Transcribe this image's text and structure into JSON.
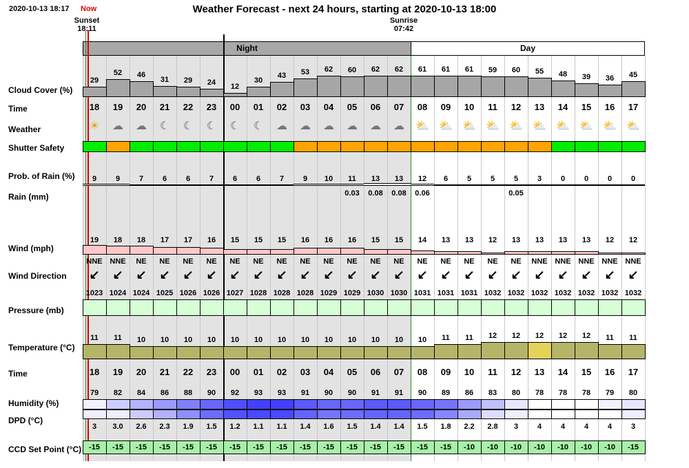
{
  "header": {
    "timestamp": "2020-10-13 18:17",
    "now_label": "Now",
    "title": "Weather Forecast - next 24 hours, starting at 2020-10-13 18:00",
    "sunset": {
      "label": "Sunset",
      "time": "18:11"
    },
    "sunrise": {
      "label": "Sunrise",
      "time": "07:42"
    }
  },
  "bands": {
    "night": "Night",
    "day": "Day"
  },
  "row_labels": {
    "cloud": "Cloud Cover (%)",
    "time": "Time",
    "weather": "Weather",
    "shutter": "Shutter Safety",
    "prob_rain": "Prob. of Rain (%)",
    "rain": "Rain (mm)",
    "wind": "Wind (mph)",
    "wind_dir": "Wind Direction",
    "pressure": "Pressure (mb)",
    "temperature": "Temperature (°C)",
    "time2": "Time",
    "humidity": "Humidity (%)",
    "dpd": "DPD (°C)",
    "ccd": "CCD Set Point (°C)"
  },
  "hours": [
    "18",
    "19",
    "20",
    "21",
    "22",
    "23",
    "00",
    "01",
    "02",
    "03",
    "04",
    "05",
    "06",
    "07",
    "08",
    "09",
    "10",
    "11",
    "12",
    "13",
    "14",
    "15",
    "16",
    "17"
  ],
  "night_hours": 14,
  "cloud_cover": [
    29,
    52,
    46,
    31,
    29,
    24,
    12,
    30,
    43,
    53,
    62,
    60,
    62,
    62,
    61,
    61,
    61,
    59,
    60,
    55,
    48,
    39,
    36,
    45
  ],
  "weather_icons": [
    "sun-icon",
    "partly-cloudy-moon-icon",
    "partly-cloudy-moon-icon",
    "moon-icon",
    "moon-icon",
    "moon-icon",
    "moon-icon",
    "moon-icon",
    "partly-cloudy-moon-icon",
    "partly-cloudy-moon-icon",
    "partly-cloudy-moon-icon",
    "partly-cloudy-moon-icon",
    "partly-cloudy-moon-icon",
    "partly-cloudy-moon-icon",
    "partly-cloudy-sun-icon",
    "partly-cloudy-sun-icon",
    "partly-cloudy-sun-icon",
    "partly-cloudy-sun-icon",
    "partly-cloudy-sun-icon",
    "partly-cloudy-sun-icon",
    "partly-cloudy-sun-icon",
    "partly-cloudy-sun-icon",
    "partly-cloudy-sun-icon",
    "partly-cloudy-sun-icon"
  ],
  "shutter_safety": [
    "safe",
    "unsafe",
    "safe",
    "safe",
    "safe",
    "safe",
    "safe",
    "safe",
    "safe",
    "unsafe",
    "unsafe",
    "unsafe",
    "unsafe",
    "unsafe",
    "unsafe",
    "unsafe",
    "unsafe",
    "unsafe",
    "unsafe",
    "unsafe",
    "safe",
    "safe",
    "safe",
    "safe"
  ],
  "prob_rain": [
    9,
    9,
    7,
    6,
    6,
    7,
    6,
    6,
    7,
    9,
    10,
    11,
    13,
    13,
    12,
    6,
    5,
    5,
    5,
    3,
    0,
    0,
    0,
    0
  ],
  "rain_mm": [
    "",
    "",
    "",
    "",
    "",
    "",
    "",
    "",
    "",
    "",
    "",
    "0.03",
    "0.08",
    "0.08",
    "0.06",
    "",
    "",
    "",
    "0.05",
    "",
    "",
    "",
    "",
    ""
  ],
  "wind_mph": [
    19,
    18,
    18,
    17,
    17,
    16,
    15,
    15,
    15,
    16,
    16,
    16,
    15,
    15,
    14,
    13,
    13,
    12,
    13,
    13,
    13,
    13,
    12,
    12
  ],
  "wind_dir": [
    "NNE",
    "NNE",
    "NE",
    "NE",
    "NE",
    "NE",
    "NE",
    "NE",
    "NE",
    "NE",
    "NE",
    "NE",
    "NE",
    "NE",
    "NE",
    "NE",
    "NE",
    "NE",
    "NE",
    "NNE",
    "NNE",
    "NNE",
    "NNE",
    "NNE"
  ],
  "pressure_mb": [
    1023,
    1024,
    1024,
    1025,
    1026,
    1026,
    1027,
    1028,
    1028,
    1028,
    1029,
    1029,
    1030,
    1030,
    1031,
    1031,
    1031,
    1032,
    1032,
    1032,
    1032,
    1032,
    1032,
    1032
  ],
  "temperature_c": [
    11,
    11,
    10,
    10,
    10,
    10,
    10,
    10,
    10,
    10,
    10,
    10,
    10,
    10,
    10,
    11,
    11,
    12,
    12,
    12,
    12,
    12,
    11,
    11
  ],
  "humidity_pct": [
    79,
    82,
    84,
    86,
    88,
    90,
    92,
    93,
    93,
    91,
    90,
    90,
    91,
    91,
    90,
    89,
    86,
    83,
    80,
    78,
    78,
    78,
    79,
    80
  ],
  "dpd_c": [
    "3",
    "3.0",
    "2.6",
    "2.3",
    "1.9",
    "1.5",
    "1.2",
    "1.1",
    "1.1",
    "1.4",
    "1.6",
    "1.5",
    "1.4",
    "1.4",
    "1.5",
    "1.8",
    "2.2",
    "2.8",
    "3",
    "4",
    "4",
    "4",
    "4",
    "3"
  ],
  "ccd_setpoint_c": [
    -15,
    -15,
    -15,
    -15,
    -15,
    -15,
    -15,
    -15,
    -15,
    -15,
    -15,
    -15,
    -15,
    -15,
    -15,
    -15,
    -10,
    -10,
    -10,
    -10,
    -10,
    -10,
    -10,
    -15
  ],
  "colors": {
    "safe": "#00ee00",
    "unsafe": "#ffa500",
    "cloud_fill": "#a6a6a6",
    "wind_fill": "#ffc8c8",
    "pressure_fill": "#d6ffd6",
    "temperature_fill": "#b5b56a",
    "temperature_peak": "#e3d35a",
    "ccd_fill": "#a8f0a8",
    "now_line": "#e00000",
    "day_line": "#2a8a2a"
  }
}
